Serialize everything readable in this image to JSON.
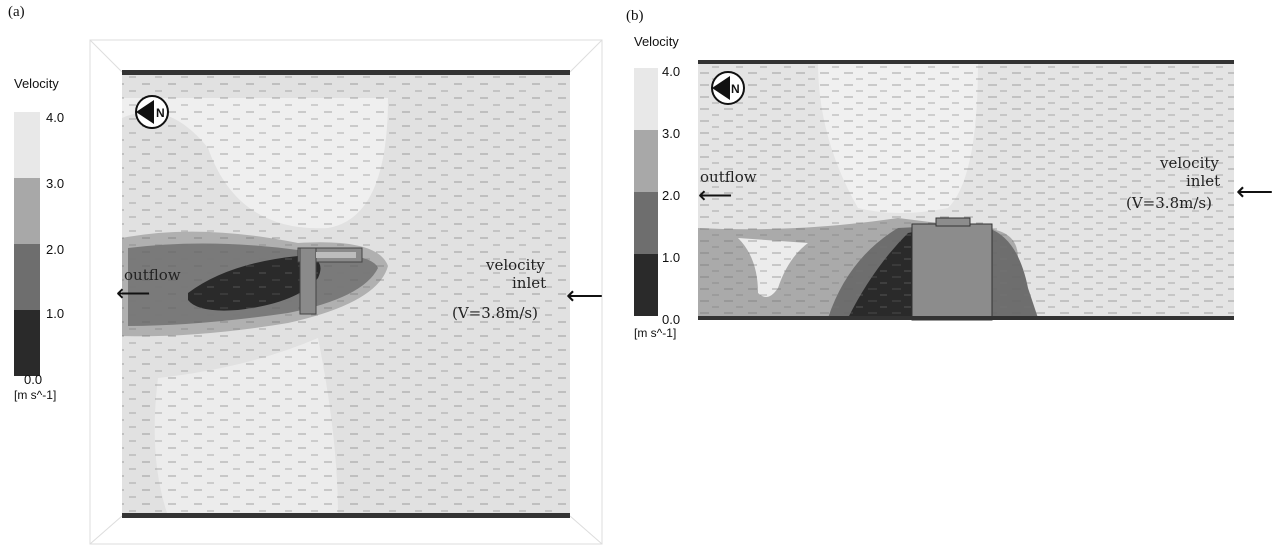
{
  "panels": {
    "a": {
      "label": "(a)",
      "legend": {
        "title": "Velocity",
        "unit": "[m s^-1]",
        "ticks": [
          "4.0",
          "3.0",
          "2.0",
          "1.0",
          "0.0"
        ]
      },
      "outflow_label": "outflow",
      "inlet": {
        "line1": "velocity",
        "line2": "inlet",
        "line3": "(V=3.8m/s)"
      }
    },
    "b": {
      "label": "(b)",
      "legend": {
        "title": "Velocity",
        "unit": "[m s^-1]",
        "ticks": [
          "4.0",
          "3.0",
          "2.0",
          "1.0",
          "0.0"
        ]
      },
      "outflow_label": "outflow",
      "inlet": {
        "line1": "velocity",
        "line2": "inlet",
        "line3": "(V=3.8m/s)"
      }
    }
  },
  "legend_colors": [
    "#e8e8e8",
    "#a8a8a8",
    "#6e6e6e",
    "#2a2a2a"
  ],
  "icons": {
    "north": "north-arrow-icon",
    "arrow": "left-arrow-icon"
  }
}
